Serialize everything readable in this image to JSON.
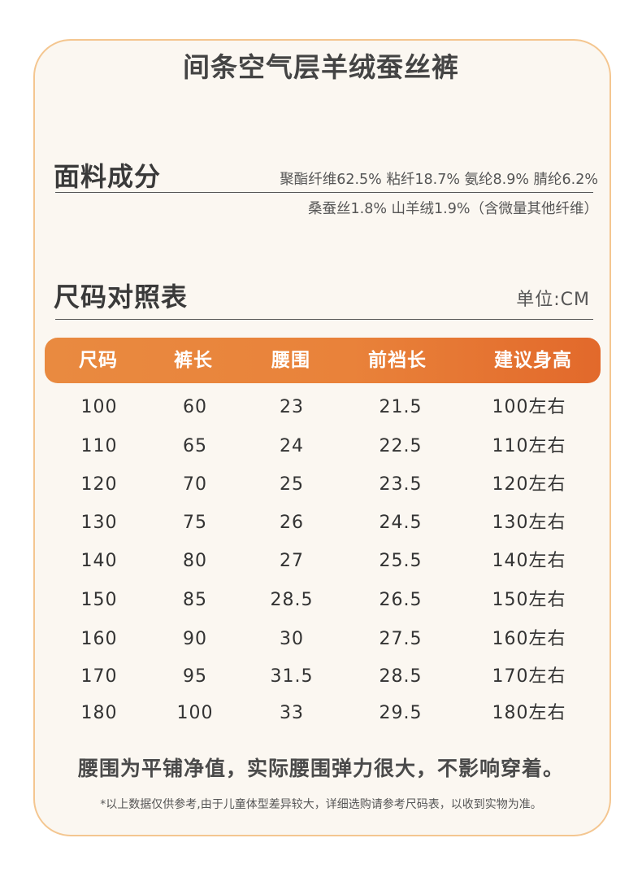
{
  "title": "间条空气层羊绒蚕丝裤",
  "fabric": {
    "heading": "面料成分",
    "line1": "聚酯纤维62.5%  粘纤18.7%  氨纶8.9%  腈纶6.2%",
    "line2": "桑蚕丝1.8% 山羊绒1.9%（含微量其他纤维）"
  },
  "size_chart": {
    "heading": "尺码对照表",
    "unit": "单位:CM",
    "columns": [
      "尺码",
      "裤长",
      "腰围",
      "前裆长",
      "建议身高"
    ],
    "rows": [
      [
        "100",
        "60",
        "23",
        "21.5",
        "100左右"
      ],
      [
        "110",
        "65",
        "24",
        "22.5",
        "110左右"
      ],
      [
        "120",
        "70",
        "25",
        "23.5",
        "120左右"
      ],
      [
        "130",
        "75",
        "26",
        "24.5",
        "130左右"
      ],
      [
        "140",
        "80",
        "27",
        "25.5",
        "140左右"
      ],
      [
        "150",
        "85",
        "28.5",
        "26.5",
        "150左右"
      ],
      [
        "160",
        "90",
        "30",
        "27.5",
        "160左右"
      ],
      [
        "170",
        "95",
        "31.5",
        "28.5",
        "170左右"
      ],
      [
        "180",
        "100",
        "33",
        "29.5",
        "180左右"
      ]
    ]
  },
  "notes": {
    "main": "腰围为平铺净值，实际腰围弹力很大，不影响穿着。",
    "small": "*以上数据仅供参考,由于儿童体型差异较大，详细选购请参考尺码表，以收到实物为准。"
  },
  "colors": {
    "border": "#f4c690",
    "card_bg": "#fbf7f1",
    "header_orange": "#e9823a"
  }
}
